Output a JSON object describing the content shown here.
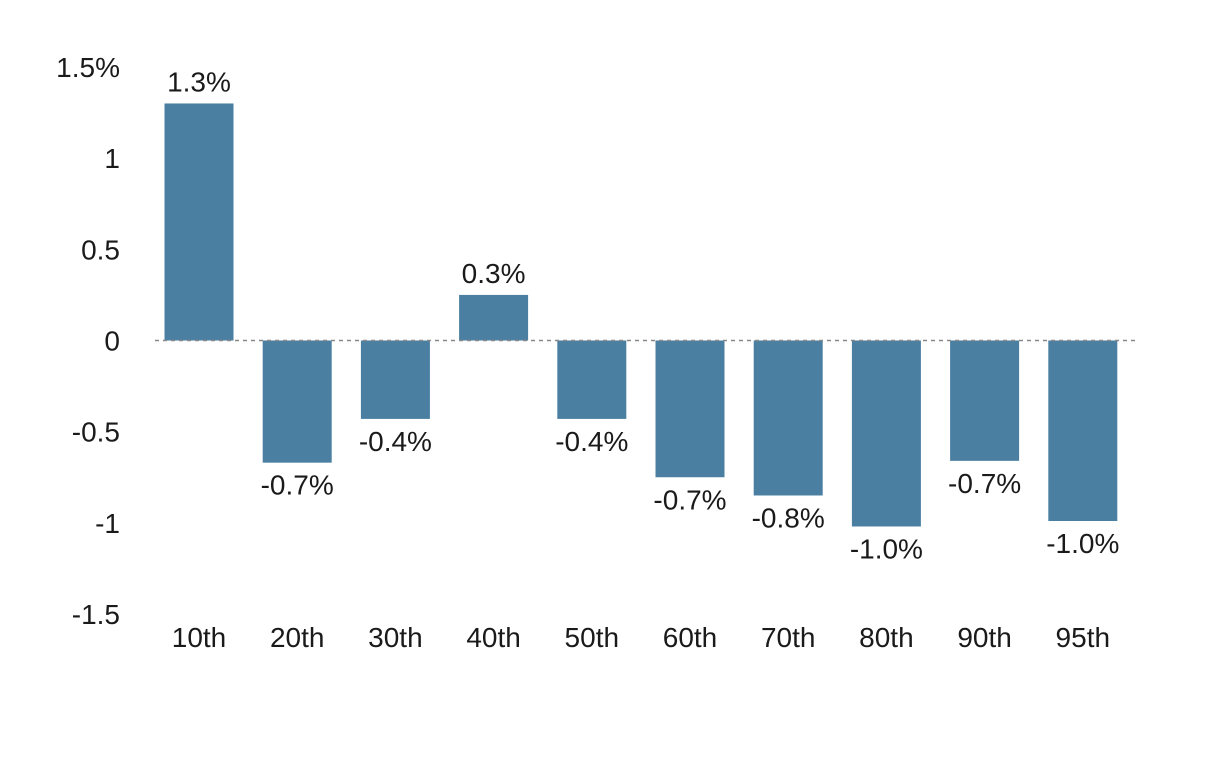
{
  "chart_data": {
    "type": "bar",
    "categories": [
      "10th",
      "20th",
      "30th",
      "40th",
      "50th",
      "60th",
      "70th",
      "80th",
      "90th",
      "95th"
    ],
    "values": [
      1.3,
      -0.67,
      -0.43,
      0.25,
      -0.43,
      -0.75,
      -0.85,
      -1.02,
      -0.66,
      -0.99
    ],
    "data_labels": [
      "1.3%",
      "-0.7%",
      "-0.4%",
      "0.3%",
      "-0.4%",
      "-0.7%",
      "-0.8%",
      "-1.0%",
      "-0.7%",
      "-1.0%"
    ],
    "yticks": [
      1.5,
      1,
      0.5,
      0,
      -0.5,
      -1,
      -1.5
    ],
    "ytick_labels": [
      "1.5%",
      "1",
      "0.5",
      "0",
      "-0.5",
      "-1",
      "-1.5"
    ],
    "ylim": [
      -1.5,
      1.5
    ],
    "title": "",
    "xlabel": "",
    "ylabel": "",
    "grid": false,
    "zero_line": "dashed",
    "colors": {
      "bar": "#4a7fa2",
      "zero_line": "#888888",
      "text": "#1a1a1a"
    }
  }
}
